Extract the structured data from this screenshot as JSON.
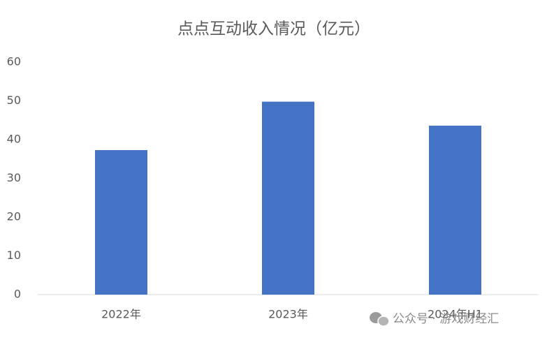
{
  "chart_data": {
    "type": "bar",
    "title": "点点互动收入情况（亿元）",
    "categories": [
      "2022年",
      "2023年",
      "2024年H1"
    ],
    "values": [
      37.3,
      49.8,
      43.6
    ],
    "color": "#4472c4",
    "ylim": [
      0,
      60
    ],
    "yticks": [
      0,
      10,
      20,
      30,
      40,
      50,
      60
    ],
    "grid": false
  },
  "watermark": "公众号 · 游戏财经汇"
}
